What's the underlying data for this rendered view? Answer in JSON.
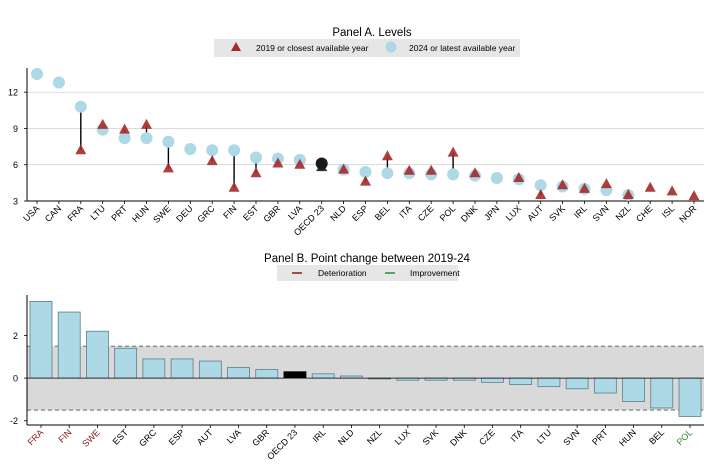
{
  "chart_data": [
    {
      "type": "scatter",
      "title": "Panel A. Levels",
      "ylim": [
        3,
        14
      ],
      "yticks": [
        3,
        6,
        9,
        12
      ],
      "grid": true,
      "legend_position": "top-center",
      "legend": [
        {
          "name": "2019  or closest available year",
          "marker": "triangle",
          "color": "#a52a2a"
        },
        {
          "name": "2024  or latest available year",
          "marker": "circle",
          "color": "#add8e6"
        }
      ],
      "categories": [
        "USA",
        "CAN",
        "FRA",
        "LTU",
        "PRT",
        "HUN",
        "SWE",
        "DEU",
        "GRC",
        "FIN",
        "EST",
        "GBR",
        "LVA",
        "OECD 23",
        "NLD",
        "ESP",
        "BEL",
        "ITA",
        "CZE",
        "POL",
        "DNK",
        "JPN",
        "LUX",
        "AUT",
        "SVK",
        "IRL",
        "SVN",
        "NZL",
        "CHE",
        "ISL",
        "NOR"
      ],
      "series": [
        {
          "name": "2019",
          "values": [
            null,
            null,
            7.2,
            9.3,
            8.9,
            9.3,
            5.7,
            null,
            6.3,
            4.1,
            5.3,
            6.1,
            6.0,
            5.8,
            5.6,
            4.6,
            6.7,
            5.5,
            5.5,
            7.0,
            5.3,
            null,
            4.9,
            3.5,
            4.3,
            4.0,
            4.4,
            3.5,
            4.1,
            3.8,
            3.4
          ]
        },
        {
          "name": "2024",
          "values": [
            13.5,
            12.8,
            10.8,
            8.9,
            8.2,
            8.2,
            7.9,
            7.3,
            7.2,
            7.2,
            6.6,
            6.5,
            6.4,
            6.1,
            5.6,
            5.4,
            5.3,
            5.3,
            5.2,
            5.2,
            5.1,
            4.9,
            4.8,
            4.3,
            4.2,
            4.0,
            3.9,
            3.5,
            null,
            null,
            null
          ]
        }
      ],
      "highlight": {
        "category": "OECD 23",
        "color": "#1a1a1a"
      }
    },
    {
      "type": "bar",
      "title": "Panel B. Point change between 2019-24",
      "ylim": [
        -2.2,
        3.9
      ],
      "yticks": [
        -2,
        0,
        2
      ],
      "reference_lines": [
        1.5,
        -1.5
      ],
      "legend_position": "top-center",
      "legend": [
        {
          "name": "Deterioration",
          "color": "#8b1a1a"
        },
        {
          "name": "Improvement",
          "color": "#2e8b2e"
        }
      ],
      "categories": [
        "FRA",
        "FIN",
        "SWE",
        "EST",
        "GRC",
        "ESP",
        "AUT",
        "LVA",
        "GBR",
        "OECD 23",
        "IRL",
        "NLD",
        "NZL",
        "LUX",
        "SVK",
        "DNK",
        "CZE",
        "ITA",
        "LTU",
        "SVN",
        "PRT",
        "HUN",
        "BEL",
        "POL"
      ],
      "values": [
        3.6,
        3.1,
        2.2,
        1.4,
        0.9,
        0.9,
        0.8,
        0.5,
        0.4,
        0.3,
        0.2,
        0.1,
        0.0,
        -0.1,
        -0.1,
        -0.1,
        -0.2,
        -0.3,
        -0.4,
        -0.5,
        -0.7,
        -1.1,
        -1.4,
        -1.8
      ],
      "label_status": {
        "deterioration": [
          "FRA",
          "FIN",
          "SWE"
        ],
        "improvement": [
          "POL"
        ]
      },
      "highlight": {
        "category": "OECD 23",
        "color": "#000000"
      }
    }
  ],
  "colors": {
    "triangle": "#a52a2a",
    "circle": "#add8e6",
    "oecd": "#1a1a1a",
    "bar": "#add8e6",
    "bar_stroke": "#5a7f8e",
    "band": "#d9d9d9",
    "legend_bg": "#e6e6e6",
    "deterioration_label": "#8b1a1a",
    "improvement_label": "#2e8b2e"
  }
}
